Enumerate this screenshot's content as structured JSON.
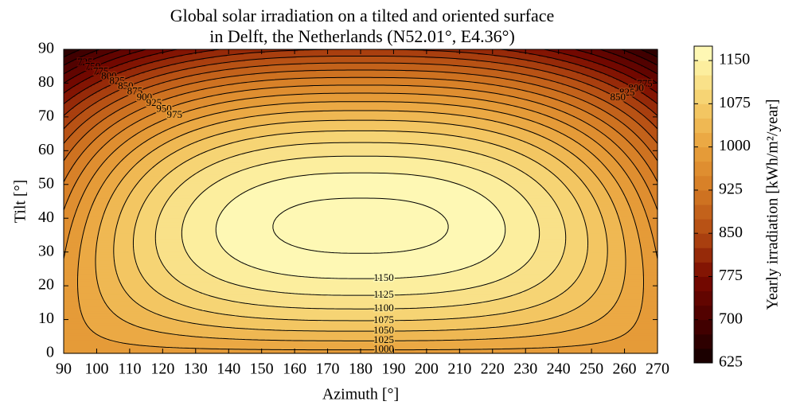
{
  "chart_data": {
    "type": "contour",
    "title": [
      "Global solar irradiation on a tilted and oriented surface",
      "in Delft, the Netherlands (N52.01°, E4.36°)"
    ],
    "x_label": "Azimuth [°]",
    "y_label": "Tilt [°]",
    "xlim": [
      90,
      270
    ],
    "xticks": [
      90,
      100,
      110,
      120,
      130,
      140,
      150,
      160,
      170,
      180,
      190,
      200,
      210,
      220,
      230,
      240,
      250,
      260,
      270
    ],
    "ylim": [
      0,
      90
    ],
    "yticks": [
      0,
      10,
      20,
      30,
      40,
      50,
      60,
      70,
      80,
      90
    ],
    "levels": [
      625,
      650,
      675,
      700,
      725,
      750,
      775,
      800,
      825,
      850,
      875,
      900,
      925,
      950,
      975,
      1000,
      1025,
      1050,
      1075,
      1100,
      1125,
      1150,
      1175
    ],
    "labeled_levels": [
      725,
      750,
      775,
      800,
      825,
      850,
      875,
      900,
      925,
      950,
      975,
      1000,
      1025,
      1050,
      1075,
      1100,
      1125,
      1150
    ],
    "colorbar": {
      "label": "Yearly irradiation [kWh/m²/year]",
      "lim": [
        625,
        1175
      ],
      "ticks": [
        625,
        700,
        775,
        850,
        925,
        1000,
        1075,
        1150
      ]
    }
  }
}
